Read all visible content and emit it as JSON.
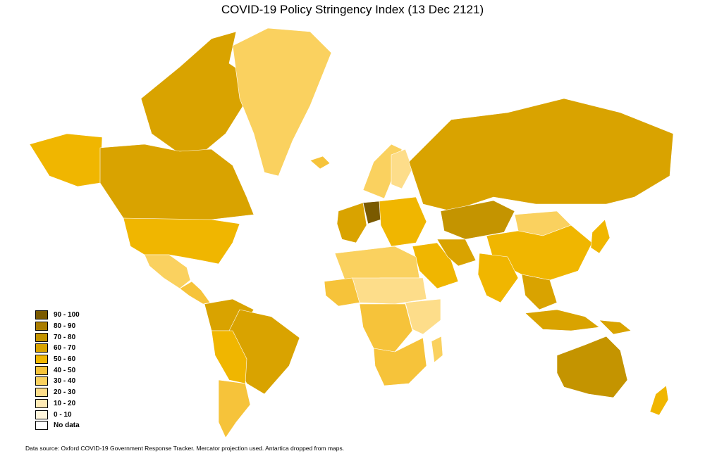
{
  "title": "COVID-19 Policy Stringency Index (13 Dec 2121)",
  "source_note": "Data source: Oxford COVID-19 Government Response Tracker. Mercator projection used. Antartica dropped from maps.",
  "legend": [
    {
      "label": "90 - 100",
      "color": "#7a5a00"
    },
    {
      "label": "80 - 90",
      "color": "#a97c00"
    },
    {
      "label": "70 - 80",
      "color": "#c49400"
    },
    {
      "label": "60 - 70",
      "color": "#d9a300"
    },
    {
      "label": "50 - 60",
      "color": "#f0b600"
    },
    {
      "label": "40 - 50",
      "color": "#f6c33a"
    },
    {
      "label": "30 - 40",
      "color": "#fad15f"
    },
    {
      "label": "20 - 30",
      "color": "#fddd8a"
    },
    {
      "label": "10 - 20",
      "color": "#feeab5"
    },
    {
      "label": "0 - 10",
      "color": "#fff6dc"
    },
    {
      "label": "No data",
      "color": "#ffffff"
    }
  ],
  "regions": [
    {
      "name": "canada",
      "bin": "60 - 70"
    },
    {
      "name": "arctic-canada",
      "bin": "60 - 70"
    },
    {
      "name": "alaska",
      "bin": "50 - 60"
    },
    {
      "name": "united-states",
      "bin": "50 - 60"
    },
    {
      "name": "mexico",
      "bin": "30 - 40"
    },
    {
      "name": "central-america",
      "bin": "40 - 50"
    },
    {
      "name": "greenland",
      "bin": "30 - 40"
    },
    {
      "name": "iceland",
      "bin": "40 - 50"
    },
    {
      "name": "colombia-venezuela",
      "bin": "60 - 70"
    },
    {
      "name": "brazil",
      "bin": "60 - 70"
    },
    {
      "name": "peru-bolivia",
      "bin": "50 - 60"
    },
    {
      "name": "chile-argentina",
      "bin": "40 - 50"
    },
    {
      "name": "scandinavia",
      "bin": "30 - 40"
    },
    {
      "name": "finland",
      "bin": "20 - 30"
    },
    {
      "name": "western-europe",
      "bin": "60 - 70"
    },
    {
      "name": "germany",
      "bin": "90 - 100"
    },
    {
      "name": "eastern-europe",
      "bin": "50 - 60"
    },
    {
      "name": "russia",
      "bin": "60 - 70"
    },
    {
      "name": "kazakhstan",
      "bin": "70 - 80"
    },
    {
      "name": "china",
      "bin": "50 - 60"
    },
    {
      "name": "mongolia",
      "bin": "30 - 40"
    },
    {
      "name": "japan",
      "bin": "50 - 60"
    },
    {
      "name": "middle-east",
      "bin": "50 - 60"
    },
    {
      "name": "iran",
      "bin": "60 - 70"
    },
    {
      "name": "india",
      "bin": "50 - 60"
    },
    {
      "name": "southeast-asia",
      "bin": "60 - 70"
    },
    {
      "name": "indonesia",
      "bin": "60 - 70"
    },
    {
      "name": "north-africa",
      "bin": "30 - 40"
    },
    {
      "name": "west-africa",
      "bin": "40 - 50"
    },
    {
      "name": "sahel",
      "bin": "20 - 30"
    },
    {
      "name": "central-africa",
      "bin": "40 - 50"
    },
    {
      "name": "east-africa",
      "bin": "20 - 30"
    },
    {
      "name": "southern-africa",
      "bin": "40 - 50"
    },
    {
      "name": "madagascar",
      "bin": "30 - 40"
    },
    {
      "name": "australia",
      "bin": "70 - 80"
    },
    {
      "name": "new-zealand",
      "bin": "50 - 60"
    },
    {
      "name": "papua",
      "bin": "60 - 70"
    }
  ]
}
